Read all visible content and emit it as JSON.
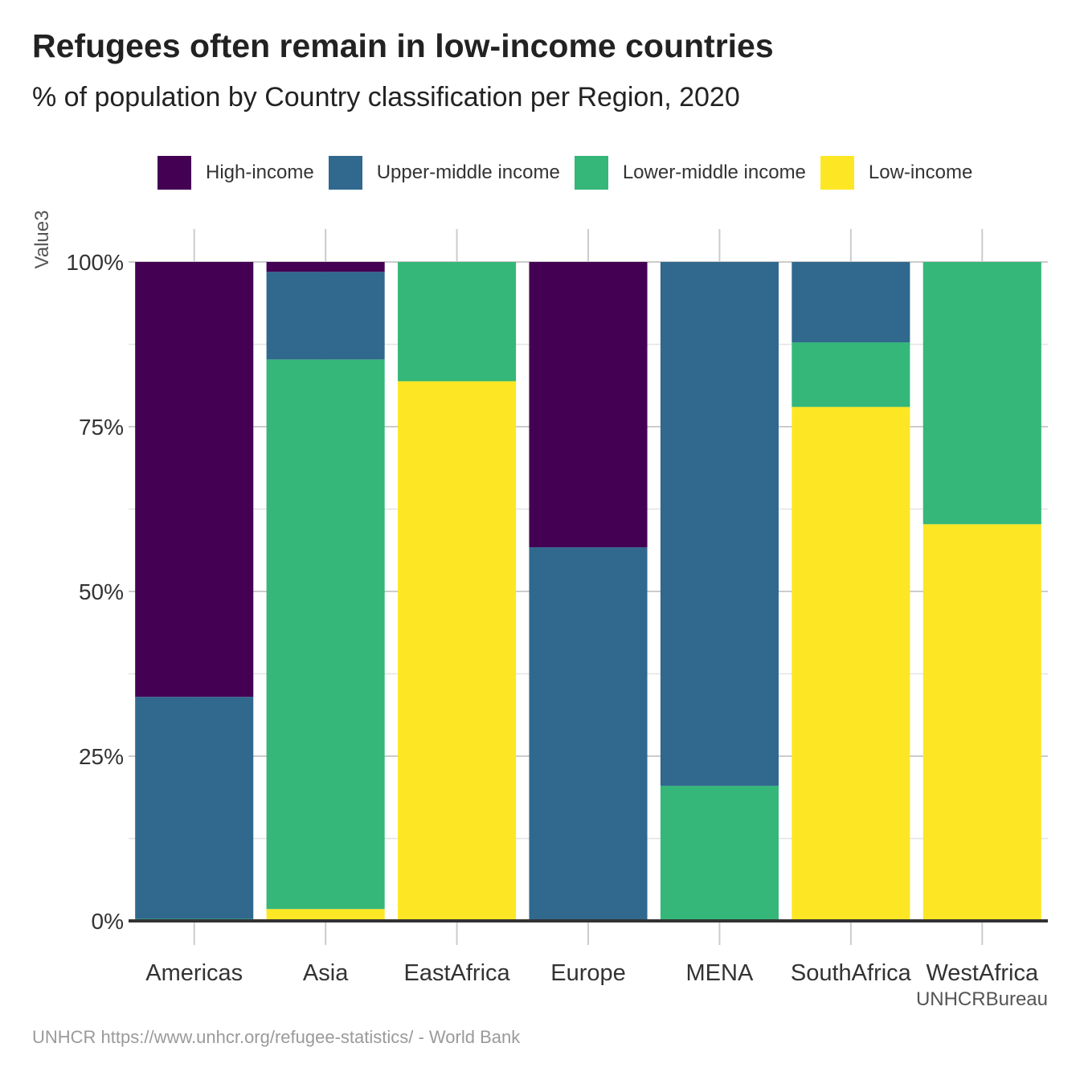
{
  "title": "Refugees often remain in low-income countries",
  "subtitle": "% of population by Country classification per Region, 2020",
  "caption": "UNHCRBureau",
  "source": "UNHCR https://www.unhcr.org/refugee-statistics/ - World Bank",
  "legend": [
    {
      "label": "High-income",
      "color": "#440154"
    },
    {
      "label": "Upper-middle income",
      "color": "#31688e"
    },
    {
      "label": "Lower-middle income",
      "color": "#35b779"
    },
    {
      "label": "Low-income",
      "color": "#fde725"
    }
  ],
  "chart_data": {
    "type": "bar",
    "stacked": true,
    "title": "Refugees often remain in low-income countries",
    "subtitle": "% of population by Country classification per Region, 2020",
    "xlabel": "UNHCRBureau",
    "ylabel": "Value3",
    "ylim": [
      0,
      100
    ],
    "y_ticks": [
      "0%",
      "25%",
      "50%",
      "75%",
      "100%"
    ],
    "categories": [
      "Americas",
      "Asia",
      "EastAfrica",
      "Europe",
      "MENA",
      "SouthAfrica",
      "WestAfrica"
    ],
    "series": [
      {
        "name": "High-income",
        "color": "#440154",
        "values": [
          66,
          1.5,
          0,
          43.3,
          0,
          0,
          0
        ]
      },
      {
        "name": "Upper-middle income",
        "color": "#31688e",
        "values": [
          33.7,
          13.3,
          0,
          56.7,
          79.5,
          12.2,
          0
        ]
      },
      {
        "name": "Lower-middle income",
        "color": "#35b779",
        "values": [
          0.3,
          83.4,
          18.1,
          0,
          20.5,
          9.8,
          39.8
        ]
      },
      {
        "name": "Low-income",
        "color": "#fde725",
        "values": [
          0,
          1.8,
          81.9,
          0,
          0,
          78,
          60.2
        ]
      }
    ],
    "grid": true,
    "legend_position": "top"
  }
}
